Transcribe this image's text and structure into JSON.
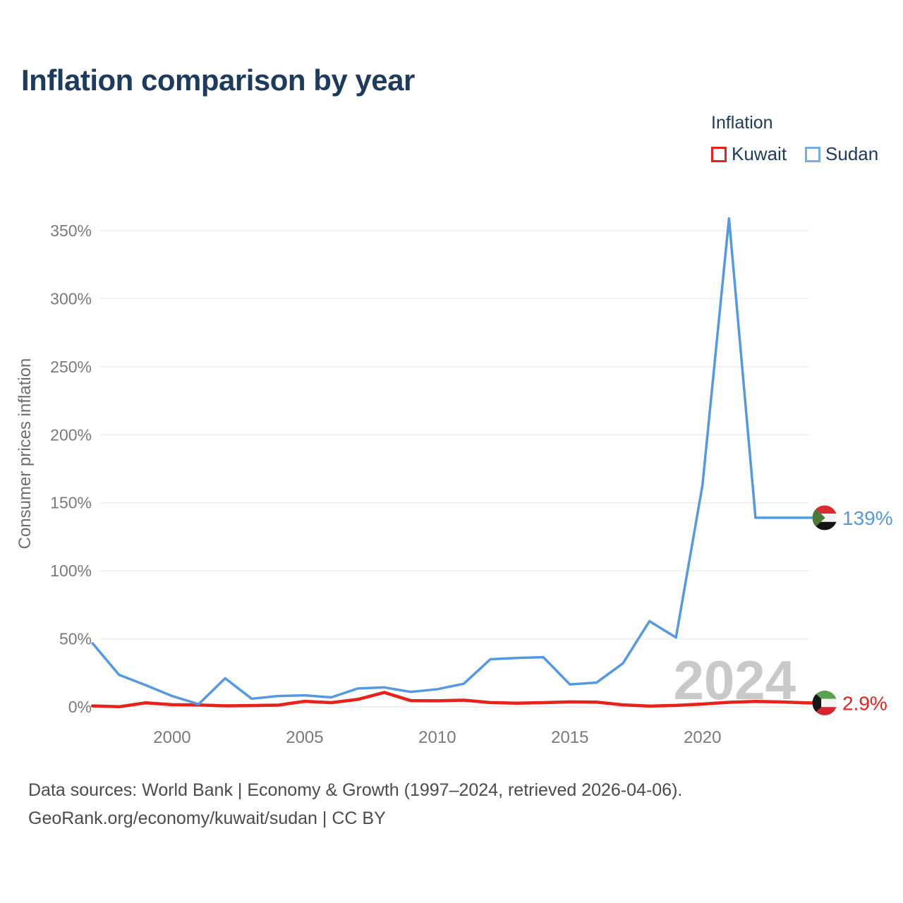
{
  "page": {
    "title": "Inflation comparison by year",
    "watermark": "2024",
    "footer_line1": "Data sources: World Bank | Economy & Growth (1997–2024, retrieved 2026-04-06).",
    "footer_line2": "GeoRank.org/economy/kuwait/sudan | CC BY"
  },
  "legend": {
    "title": "Inflation",
    "items": [
      {
        "label": "Kuwait",
        "color": "#e8211b"
      },
      {
        "label": "Sudan",
        "color": "#74ade8"
      }
    ]
  },
  "chart_data": {
    "type": "line",
    "title": "Inflation comparison by year",
    "ylabel": "Consumer prices inflation",
    "xlabel": "",
    "grid": "horizontal",
    "legend_position": "top-right",
    "ylim": [
      0,
      375
    ],
    "x_range": [
      1997,
      2024
    ],
    "x": [
      1997,
      1998,
      1999,
      2000,
      2001,
      2002,
      2003,
      2004,
      2005,
      2006,
      2007,
      2008,
      2009,
      2010,
      2011,
      2012,
      2013,
      2014,
      2015,
      2016,
      2017,
      2018,
      2019,
      2020,
      2021,
      2022,
      2023,
      2024
    ],
    "x_ticks": [
      2000,
      2005,
      2010,
      2015,
      2020
    ],
    "y_ticks": [
      0,
      50,
      100,
      150,
      200,
      250,
      300,
      350
    ],
    "y_tick_labels": [
      "0%",
      "50%",
      "100%",
      "150%",
      "200%",
      "250%",
      "300%",
      "350%"
    ],
    "series": [
      {
        "name": "Kuwait",
        "color": "#e8211b",
        "flag_icon": "kuwait-flag-icon",
        "end_label": "2.9%",
        "values": [
          0.7,
          0.1,
          3.0,
          1.6,
          1.4,
          0.8,
          1.0,
          1.3,
          4.1,
          3.1,
          5.5,
          10.6,
          4.6,
          4.5,
          4.9,
          3.2,
          2.7,
          3.1,
          3.7,
          3.5,
          1.5,
          0.6,
          1.1,
          2.1,
          3.4,
          4.0,
          3.6,
          2.9
        ]
      },
      {
        "name": "Sudan",
        "color": "#5499e4",
        "flag_icon": "sudan-flag-icon",
        "end_label": "139%",
        "values": [
          46.7,
          23.5,
          16.0,
          8.0,
          2.0,
          21.0,
          6.0,
          8.0,
          8.5,
          7.0,
          13.5,
          14.3,
          11.0,
          13.0,
          17.0,
          35.0,
          36.0,
          36.5,
          16.5,
          17.8,
          32.0,
          63.0,
          51.0,
          163.0,
          359.0,
          139.0,
          139.0,
          139.0
        ]
      }
    ]
  },
  "colors": {
    "title_text": "#1d3a5f",
    "axis_text": "#7a7a7a",
    "gridline": "#ececec",
    "watermark": "#c9c9c9",
    "footer_text": "#4c4c4c",
    "kuwait_line": "#e8211b",
    "sudan_line": "#5499e4"
  }
}
